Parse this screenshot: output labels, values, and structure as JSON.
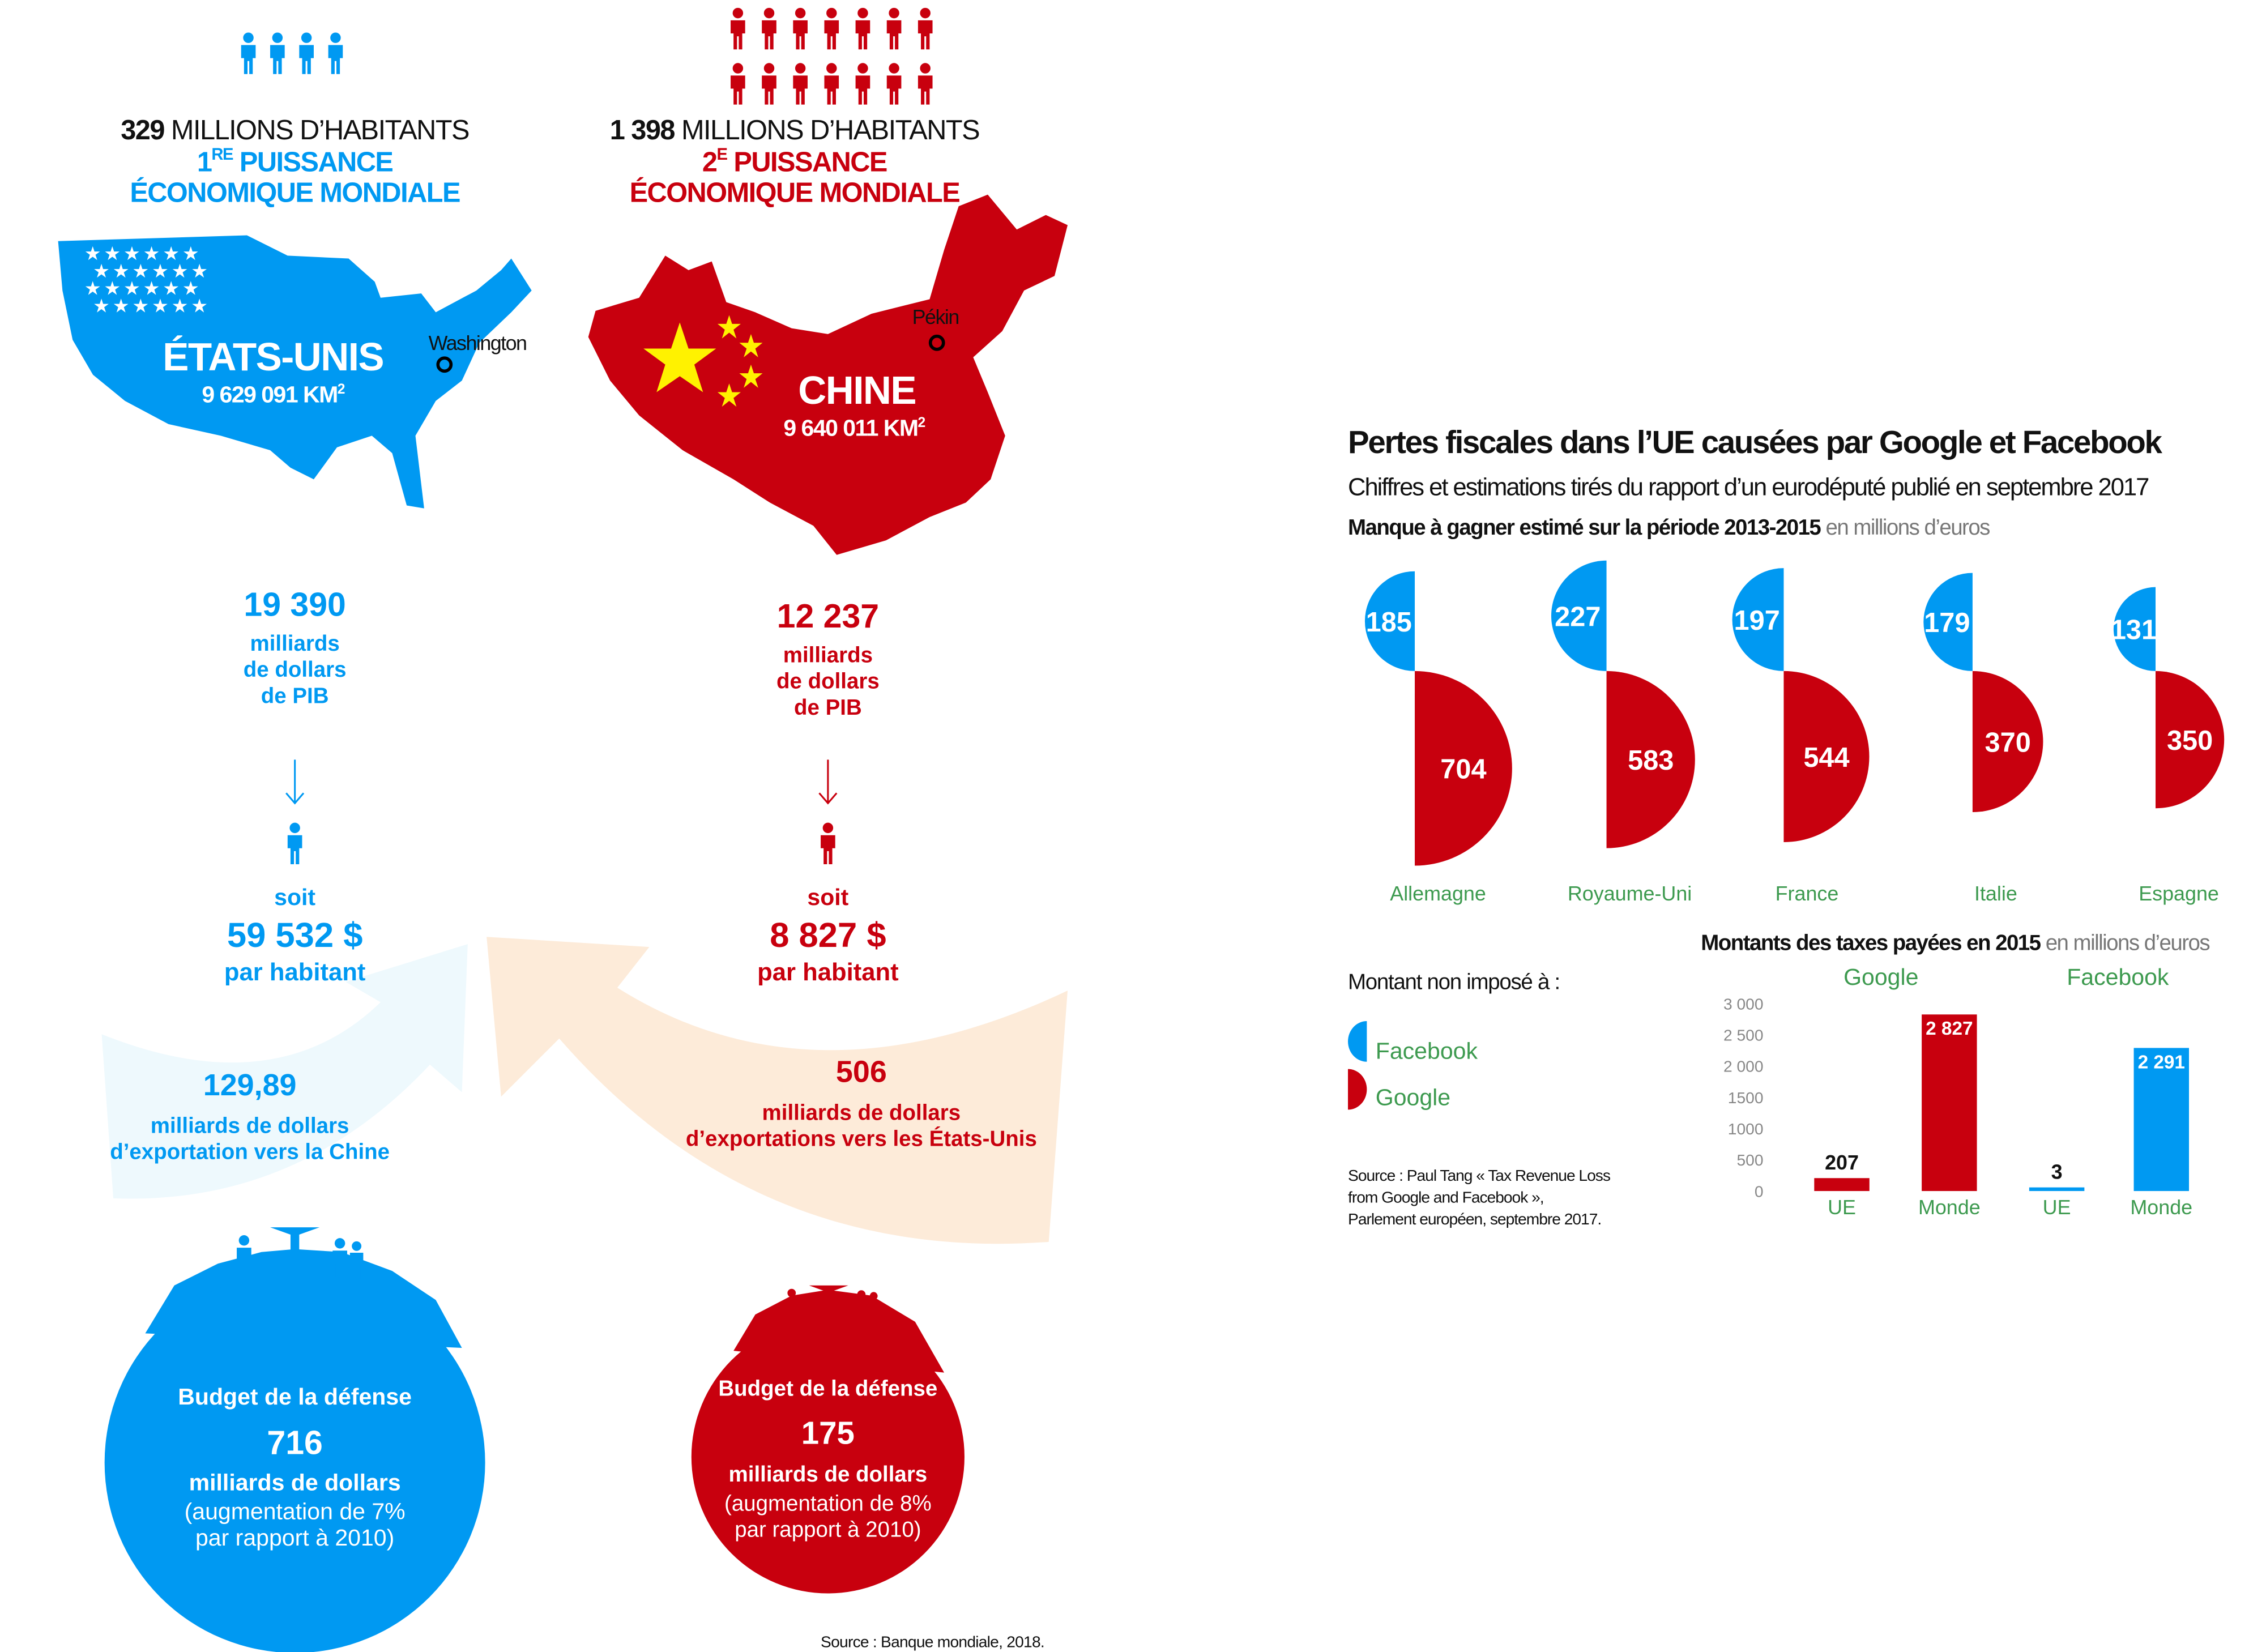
{
  "colors": {
    "blue": "#0099f2",
    "red": "#c8000e",
    "green": "#3d9a4f",
    "cream": "#fdebd9",
    "lightblue": "#eef9fd",
    "yellow": "#fff200"
  },
  "usa": {
    "population_num": "329",
    "population_text": " MILLIONS D’HABITANTS",
    "rank_num": "1",
    "rank_sup": "RE",
    "rank_text": " PUISSANCE",
    "rank_line2": "ÉCONOMIQUE MONDIALE",
    "name": "ÉTATS-UNIS",
    "area": "9 629 091 KM",
    "area_sup": "2",
    "capital": "Washington",
    "gdp": "19 390",
    "gdp_l1": "milliards",
    "gdp_l2": "de dollars",
    "gdp_l3": "de PIB",
    "soit": "soit",
    "per_capita": "59 532 $",
    "per_capita_label": "par habitant",
    "export_value": "129,89",
    "export_l1": "milliards de dollars",
    "export_l2": "d’exportation vers la Chine",
    "defense_title": "Budget de la défense",
    "defense_value": "716",
    "defense_unit": "milliards de dollars",
    "defense_l1": "(augmentation de 7%",
    "defense_l2": "par rapport à 2010)"
  },
  "china": {
    "population_num": "1 398",
    "population_text": " MILLIONS D’HABITANTS",
    "rank_num": "2",
    "rank_sup": "E",
    "rank_text": " PUISSANCE",
    "rank_line2": "ÉCONOMIQUE MONDIALE",
    "name": "CHINE",
    "area": "9 640 011 KM",
    "area_sup": "2",
    "capital": "Pékin",
    "gdp": "12 237",
    "gdp_l1": "milliards",
    "gdp_l2": "de dollars",
    "gdp_l3": "de PIB",
    "soit": "soit",
    "per_capita": "8 827 $",
    "per_capita_label": "par habitant",
    "export_value": "506",
    "export_l1": "milliards de dollars",
    "export_l2": "d’exportations vers les États-Unis",
    "defense_title": "Budget de la défense",
    "defense_value": "175",
    "defense_unit": "milliards de dollars",
    "defense_l1": "(augmentation de 8%",
    "defense_l2": "par rapport à 2010)"
  },
  "left_source": "Source : Banque mondiale, 2018.",
  "right": {
    "title": "Pertes fiscales dans l’UE causées par Google et Facebook",
    "subtitle": "Chiffres et estimations tirés du rapport d’un eurodéputé publié en septembre 2017",
    "legend_title": "Montant non imposé à :",
    "legend": [
      {
        "name": "Facebook",
        "color": "#0099f2"
      },
      {
        "name": "Google",
        "color": "#c8000e"
      }
    ],
    "source_l1": "Source : Paul Tang « Tax Revenue Loss",
    "source_l2": "from Google and Facebook »,",
    "source_l3": "Parlement européen, septembre 2017."
  },
  "chart_data": [
    {
      "type": "pie",
      "title": "Manque à gagner estimé sur la période 2013-2015",
      "unit": "en millions d’euros",
      "categories": [
        "Allemagne",
        "Royaume-Uni",
        "France",
        "Italie",
        "Espagne"
      ],
      "series": [
        {
          "name": "Facebook",
          "values": [
            185,
            227,
            197,
            179,
            131
          ]
        },
        {
          "name": "Google",
          "values": [
            704,
            583,
            544,
            370,
            350
          ]
        }
      ]
    },
    {
      "type": "bar",
      "title": "Montants des taxes payées en 2015",
      "unit": "en millions d’euros",
      "groups": [
        "Google",
        "Facebook"
      ],
      "categories": [
        "UE",
        "Monde",
        "UE",
        "Monde"
      ],
      "values": [
        207,
        2827,
        3,
        2291
      ],
      "labels": [
        "207",
        "2 827",
        "3",
        "2 291"
      ],
      "yticks": [
        "3 000",
        "2 500",
        "2 000",
        "1500",
        "1000",
        "500",
        "0"
      ],
      "ytick_values": [
        3000,
        2500,
        2000,
        1500,
        1000,
        500,
        0
      ],
      "ylim": [
        0,
        3000
      ]
    }
  ]
}
